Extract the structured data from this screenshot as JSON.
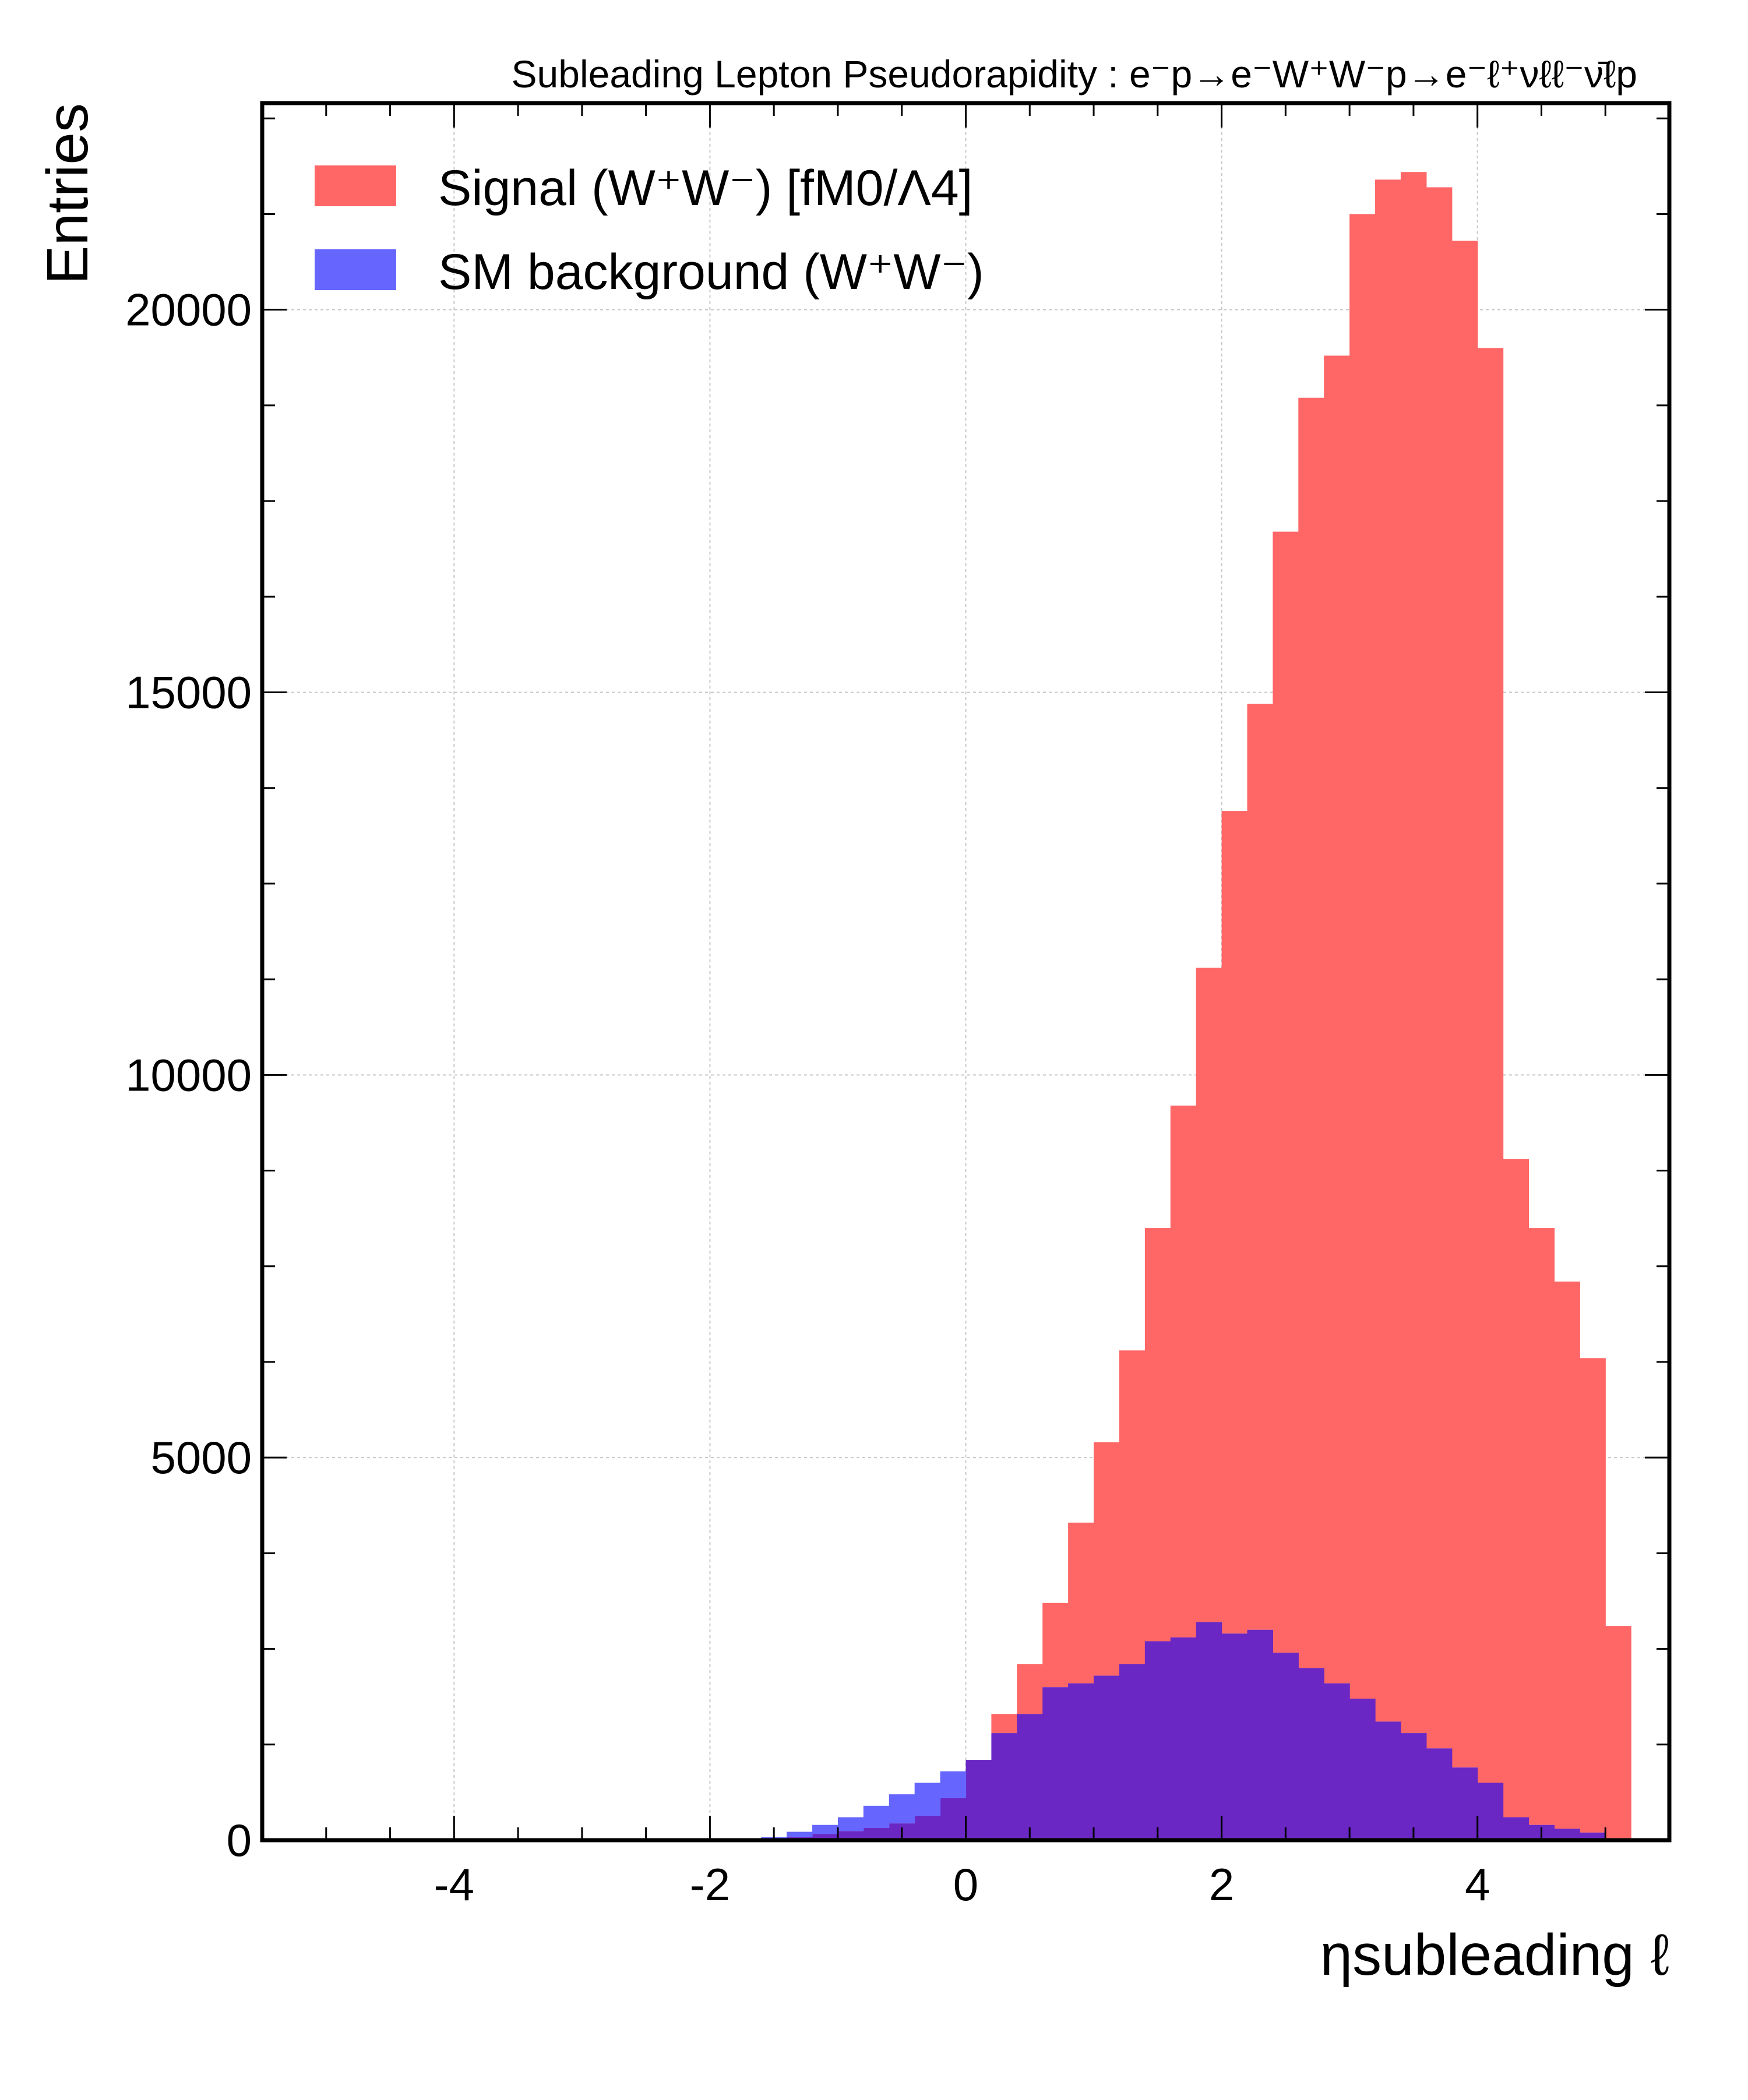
{
  "chart_data": {
    "type": "bar",
    "subtype": "histogram",
    "title": "Subleading Lepton Pseudorapidity : e⁻p→e⁻W⁺W⁻p→e⁻ℓ⁺νℓℓ⁻ν̄ℓp",
    "xlabel": "ηsubleading ℓ",
    "ylabel": "Entries",
    "xlim": [
      -5.5,
      5.5
    ],
    "ylim": [
      0,
      22700
    ],
    "x_ticks": [
      "-4",
      "-2",
      "0",
      "2",
      "4"
    ],
    "y_ticks": [
      "0",
      "5000",
      "10000",
      "15000",
      "20000"
    ],
    "grid": true,
    "legend_position": "top-left",
    "bin_edges_start": -5.0,
    "bin_width": 0.2,
    "series": [
      {
        "name": "Signal (W⁺W⁻) [fM0/Λ4]",
        "color": "#ff6666",
        "values": [
          0,
          0,
          0,
          0,
          0,
          0,
          0,
          0,
          0,
          0,
          0,
          0,
          0,
          0,
          0,
          0,
          0,
          10,
          40,
          80,
          120,
          160,
          220,
          320,
          550,
          1050,
          1650,
          2300,
          3100,
          4150,
          5200,
          6400,
          8000,
          9600,
          11400,
          13450,
          14850,
          17100,
          18850,
          19400,
          21250,
          21700,
          21800,
          21600,
          20900,
          19500,
          8900,
          8000,
          7300,
          6300,
          2800
        ]
      },
      {
        "name": "SM background (W⁺W⁻)",
        "color": "#6666ff",
        "values": [
          0,
          0,
          0,
          0,
          0,
          0,
          0,
          0,
          0,
          0,
          0,
          0,
          0,
          0,
          0,
          0,
          0,
          40,
          110,
          200,
          300,
          450,
          600,
          750,
          900,
          1050,
          1400,
          1650,
          2000,
          2050,
          2150,
          2300,
          2600,
          2650,
          2850,
          2700,
          2750,
          2450,
          2250,
          2050,
          1850,
          1550,
          1400,
          1200,
          950,
          750,
          300,
          200,
          150,
          100,
          0
        ]
      }
    ],
    "overlap_color": "#6a27c4"
  }
}
